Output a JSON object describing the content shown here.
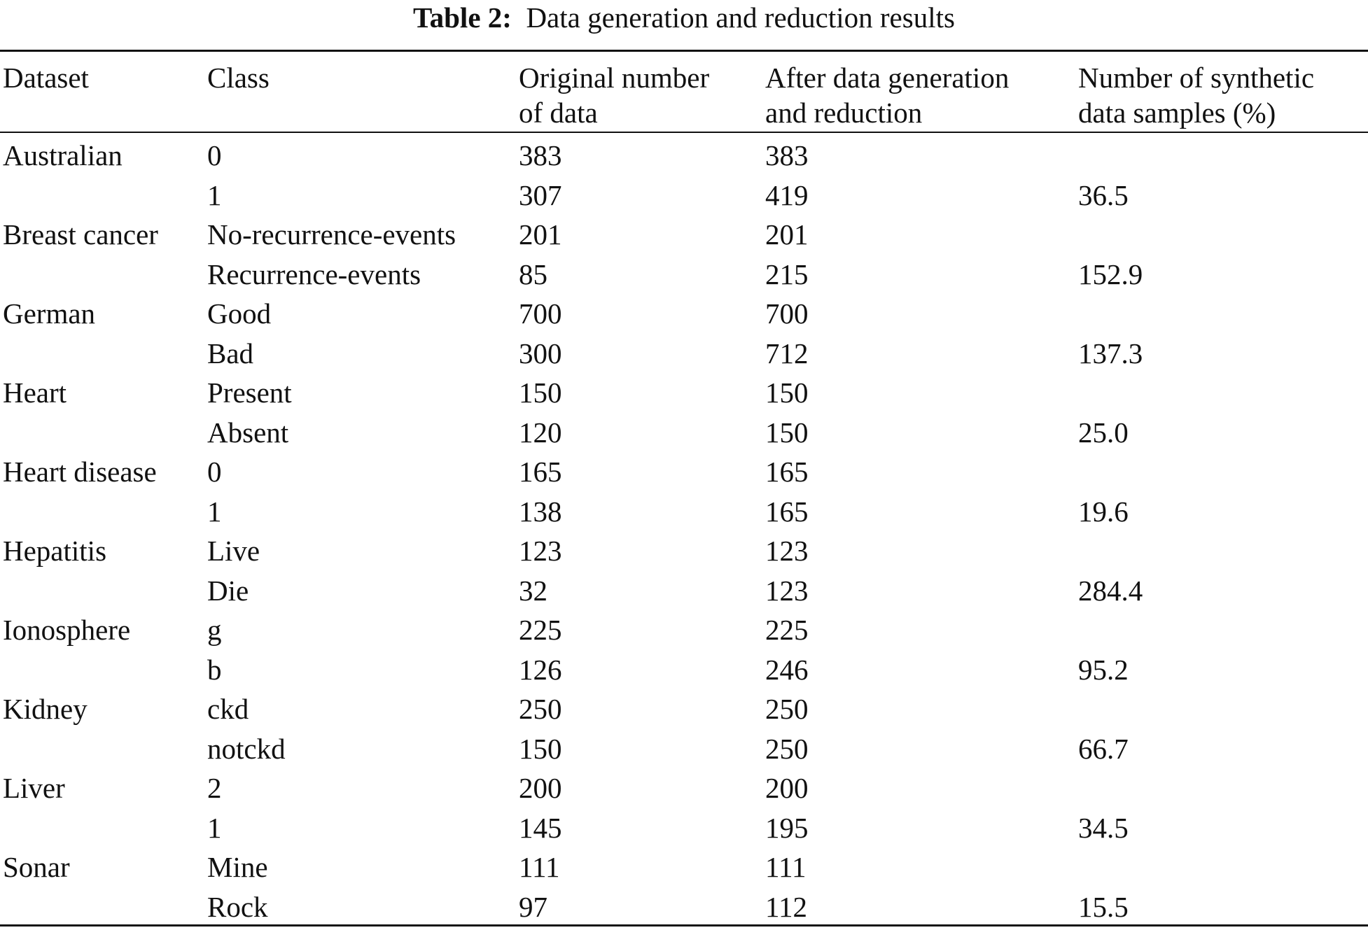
{
  "caption": {
    "label": "Table 2:",
    "title": "Data generation and reduction results"
  },
  "header": {
    "dataset": [
      "Dataset"
    ],
    "class": [
      "Class"
    ],
    "original": [
      "Original number",
      "of data"
    ],
    "after": [
      "After data generation",
      "and reduction"
    ],
    "synthetic": [
      "Number of synthetic",
      "data samples (%)"
    ]
  },
  "rows": [
    {
      "dataset": "Australian",
      "class": "0",
      "original": "383",
      "after": "383",
      "synthetic": ""
    },
    {
      "dataset": "",
      "class": "1",
      "original": "307",
      "after": "419",
      "synthetic": "36.5"
    },
    {
      "dataset": "Breast cancer",
      "class": "No-recurrence-events",
      "original": "201",
      "after": "201",
      "synthetic": ""
    },
    {
      "dataset": "",
      "class": "Recurrence-events",
      "original": "85",
      "after": "215",
      "synthetic": "152.9"
    },
    {
      "dataset": "German",
      "class": "Good",
      "original": "700",
      "after": "700",
      "synthetic": ""
    },
    {
      "dataset": "",
      "class": "Bad",
      "original": "300",
      "after": "712",
      "synthetic": "137.3"
    },
    {
      "dataset": "Heart",
      "class": "Present",
      "original": "150",
      "after": "150",
      "synthetic": ""
    },
    {
      "dataset": "",
      "class": "Absent",
      "original": "120",
      "after": "150",
      "synthetic": "25.0"
    },
    {
      "dataset": "Heart disease",
      "class": "0",
      "original": "165",
      "after": "165",
      "synthetic": ""
    },
    {
      "dataset": "",
      "class": "1",
      "original": "138",
      "after": "165",
      "synthetic": "19.6"
    },
    {
      "dataset": "Hepatitis",
      "class": "Live",
      "original": "123",
      "after": "123",
      "synthetic": ""
    },
    {
      "dataset": "",
      "class": "Die",
      "original": "32",
      "after": "123",
      "synthetic": "284.4"
    },
    {
      "dataset": "Ionosphere",
      "class": "g",
      "original": "225",
      "after": "225",
      "synthetic": ""
    },
    {
      "dataset": "",
      "class": "b",
      "original": "126",
      "after": "246",
      "synthetic": "95.2"
    },
    {
      "dataset": "Kidney",
      "class": "ckd",
      "original": "250",
      "after": "250",
      "synthetic": ""
    },
    {
      "dataset": "",
      "class": "notckd",
      "original": "150",
      "after": "250",
      "synthetic": "66.7"
    },
    {
      "dataset": "Liver",
      "class": "2",
      "original": "200",
      "after": "200",
      "synthetic": ""
    },
    {
      "dataset": "",
      "class": "1",
      "original": "145",
      "after": "195",
      "synthetic": "34.5"
    },
    {
      "dataset": "Sonar",
      "class": "Mine",
      "original": "111",
      "after": "111",
      "synthetic": ""
    },
    {
      "dataset": "",
      "class": "Rock",
      "original": "97",
      "after": "112",
      "synthetic": "15.5"
    }
  ]
}
